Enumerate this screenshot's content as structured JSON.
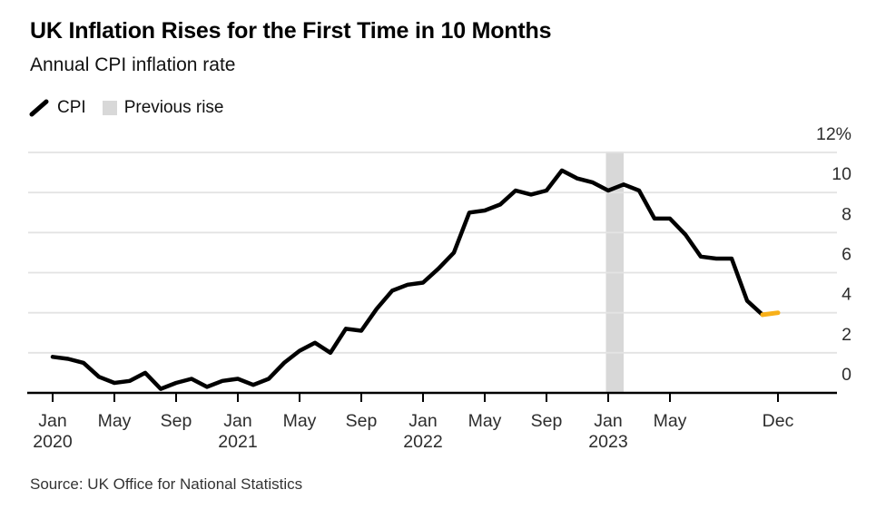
{
  "header": {
    "title": "UK Inflation Rises for the First Time in 10 Months",
    "subtitle": "Annual CPI inflation rate"
  },
  "legend": {
    "items": [
      {
        "label": "CPI",
        "marker": "line",
        "color": "#000000"
      },
      {
        "label": "Previous rise",
        "marker": "square",
        "color": "#D8D8D8"
      }
    ]
  },
  "source": "Source: UK Office for National Statistics",
  "chart_data": {
    "type": "line",
    "title": "UK Inflation Rises for the First Time in 10 Months",
    "subtitle": "Annual CPI inflation rate",
    "unit": "%",
    "ylim": [
      0,
      12
    ],
    "y_ticks": [
      0,
      2,
      4,
      6,
      8,
      10,
      12
    ],
    "grid": "horizontal",
    "grid_color": "#E3E3E3",
    "axis_labels_position": "right",
    "legend_position": "top-left",
    "x": [
      "Jan 2020",
      "Feb 2020",
      "Mar 2020",
      "Apr 2020",
      "May 2020",
      "Jun 2020",
      "Jul 2020",
      "Aug 2020",
      "Sep 2020",
      "Oct 2020",
      "Nov 2020",
      "Dec 2020",
      "Jan 2021",
      "Feb 2021",
      "Mar 2021",
      "Apr 2021",
      "May 2021",
      "Jun 2021",
      "Jul 2021",
      "Aug 2021",
      "Sep 2021",
      "Oct 2021",
      "Nov 2021",
      "Dec 2021",
      "Jan 2022",
      "Feb 2022",
      "Mar 2022",
      "Apr 2022",
      "May 2022",
      "Jun 2022",
      "Jul 2022",
      "Aug 2022",
      "Sep 2022",
      "Oct 2022",
      "Nov 2022",
      "Dec 2022",
      "Jan 2023",
      "Feb 2023",
      "Mar 2023",
      "Apr 2023",
      "May 2023",
      "Jun 2023",
      "Jul 2023",
      "Aug 2023",
      "Sep 2023",
      "Oct 2023",
      "Nov 2023",
      "Dec 2023"
    ],
    "series": [
      {
        "name": "CPI",
        "color": "#000000",
        "values": [
          1.8,
          1.7,
          1.5,
          0.8,
          0.5,
          0.6,
          1.0,
          0.2,
          0.5,
          0.7,
          0.3,
          0.6,
          0.7,
          0.4,
          0.7,
          1.5,
          2.1,
          2.5,
          2.0,
          3.2,
          3.1,
          4.2,
          5.1,
          5.4,
          5.5,
          6.2,
          7.0,
          9.0,
          9.1,
          9.4,
          10.1,
          9.9,
          10.1,
          11.1,
          10.7,
          10.5,
          10.1,
          10.4,
          10.1,
          8.7,
          8.7,
          7.9,
          6.8,
          6.7,
          6.7,
          4.6,
          3.9,
          4.0
        ]
      }
    ],
    "x_ticks": [
      {
        "i": 0,
        "month": "Jan",
        "year": "2020"
      },
      {
        "i": 4,
        "month": "May"
      },
      {
        "i": 8,
        "month": "Sep"
      },
      {
        "i": 12,
        "month": "Jan",
        "year": "2021"
      },
      {
        "i": 16,
        "month": "May"
      },
      {
        "i": 20,
        "month": "Sep"
      },
      {
        "i": 24,
        "month": "Jan",
        "year": "2022"
      },
      {
        "i": 28,
        "month": "May"
      },
      {
        "i": 32,
        "month": "Sep"
      },
      {
        "i": 36,
        "month": "Jan",
        "year": "2023"
      },
      {
        "i": 40,
        "month": "May"
      },
      {
        "i": 47,
        "month": "Dec"
      }
    ],
    "highlight_band": {
      "label": "Previous rise",
      "from": "Jan 2023",
      "to": "Feb 2023",
      "color": "#D8D8D8"
    },
    "last_segment": {
      "from": "Nov 2023",
      "to": "Dec 2023",
      "color": "#F8B019"
    }
  }
}
